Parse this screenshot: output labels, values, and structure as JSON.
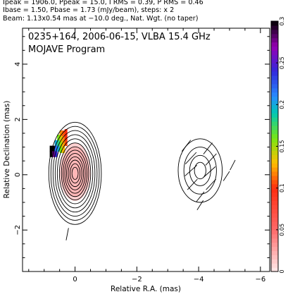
{
  "header": {
    "line1": "Ipeak = 1906.0, Ppeak = 15.0, I RMS = 0.39, P RMS = 0.46",
    "line2": "Ibase = 1.50, Pbase = 1.73 (mJy/beam), steps: x 2",
    "line3": "Beam: 1.13x0.54 mas at −10.0 deg., Nat. Wgt. (no taper)"
  },
  "panel": {
    "line1": "0235+164, 2006-06-15, VLBA 15.4 GHz",
    "line2": "MOJAVE Program"
  },
  "chart_data": {
    "type": "heatmap",
    "xlabel": "Relative R.A. (mas)",
    "ylabel": "Relative Declination (mas)",
    "xlim": [
      1.7,
      -6.3
    ],
    "ylim": [
      -3.5,
      5.3
    ],
    "xticks": [
      {
        "value": 0,
        "label": "0"
      },
      {
        "value": -2,
        "label": "−2"
      },
      {
        "value": -4,
        "label": "−4"
      },
      {
        "value": -6,
        "label": "−6"
      }
    ],
    "yticks": [
      {
        "value": -2,
        "label": "−2"
      },
      {
        "value": 0,
        "label": "0"
      },
      {
        "value": 2,
        "label": "2"
      },
      {
        "value": 4,
        "label": "4"
      }
    ],
    "colorbar": {
      "range": [
        0,
        0.3
      ],
      "ticks": [
        {
          "value": 0,
          "label": "0"
        },
        {
          "value": 0.05,
          "label": "0.05"
        },
        {
          "value": 0.1,
          "label": "0.1"
        },
        {
          "value": 0.15,
          "label": "0.15"
        },
        {
          "value": 0.2,
          "label": "0.2"
        },
        {
          "value": 0.25,
          "label": "0.25"
        },
        {
          "value": 0.3,
          "label": "0.3"
        }
      ]
    },
    "core_contours": {
      "center": [
        0,
        0.05
      ],
      "semi_major": [
        0.22,
        0.35,
        0.48,
        0.6,
        0.72,
        0.84,
        0.96,
        1.1,
        1.25,
        1.4,
        1.55,
        1.7,
        1.85
      ],
      "axis_ratio": 0.46
    },
    "companion_contours": {
      "center": [
        -4.05,
        0.15
      ],
      "semi_major": [
        0.3,
        0.55,
        0.85,
        1.15
      ],
      "axis_ratio": 0.62
    },
    "polarization_core": {
      "center": [
        0,
        0.1
      ],
      "semi_major": [
        0.9,
        1.05
      ],
      "axis_ratio": 0.48,
      "value_range": [
        0.005,
        0.05
      ]
    },
    "polarization_edge": [
      {
        "x": 0.78,
        "y": 0.95,
        "value": 0.3
      },
      {
        "x": 0.7,
        "y": 0.95,
        "value": 0.3
      },
      {
        "x": 0.78,
        "y": 0.75,
        "value": 0.3
      },
      {
        "x": 0.7,
        "y": 0.75,
        "value": 0.28
      },
      {
        "x": 0.62,
        "y": 1.15,
        "value": 0.2
      },
      {
        "x": 0.62,
        "y": 0.95,
        "value": 0.22
      },
      {
        "x": 0.62,
        "y": 0.75,
        "value": 0.24
      },
      {
        "x": 0.54,
        "y": 1.35,
        "value": 0.16
      },
      {
        "x": 0.54,
        "y": 1.15,
        "value": 0.18
      },
      {
        "x": 0.54,
        "y": 0.95,
        "value": 0.2
      },
      {
        "x": 0.46,
        "y": 1.5,
        "value": 0.12
      },
      {
        "x": 0.46,
        "y": 1.3,
        "value": 0.14
      },
      {
        "x": 0.46,
        "y": 1.1,
        "value": 0.15
      },
      {
        "x": 0.46,
        "y": 0.9,
        "value": 0.16
      },
      {
        "x": 0.38,
        "y": 1.5,
        "value": 0.11
      },
      {
        "x": 0.38,
        "y": 1.3,
        "value": 0.12
      },
      {
        "x": 0.38,
        "y": 1.1,
        "value": 0.125
      },
      {
        "x": 0.38,
        "y": 0.9,
        "value": 0.13
      },
      {
        "x": 0.3,
        "y": 1.55,
        "value": 0.1
      },
      {
        "x": 0.3,
        "y": 1.35,
        "value": 0.1
      },
      {
        "x": 0.3,
        "y": 1.15,
        "value": 0.105
      }
    ],
    "polarization_vectors": [
      {
        "x": -3.6,
        "y": 1.05,
        "angle": 35,
        "length": 0.5
      },
      {
        "x": -4.3,
        "y": 0.95,
        "angle": 35,
        "length": 0.5
      },
      {
        "x": -3.75,
        "y": 0.6,
        "angle": 40,
        "length": 0.55
      },
      {
        "x": -4.4,
        "y": 0.55,
        "angle": 40,
        "length": 0.55
      },
      {
        "x": -3.75,
        "y": 0.15,
        "angle": 45,
        "length": 0.55
      },
      {
        "x": -4.35,
        "y": 0.1,
        "angle": 45,
        "length": 0.55
      },
      {
        "x": -3.8,
        "y": -0.35,
        "angle": 40,
        "length": 0.5
      },
      {
        "x": -4.4,
        "y": -0.35,
        "angle": 40,
        "length": 0.5
      },
      {
        "x": -4.05,
        "y": -0.8,
        "angle": 35,
        "length": 0.45
      },
      {
        "x": -4.05,
        "y": -1.1,
        "angle": 30,
        "length": 0.4
      },
      {
        "x": -4.9,
        "y": -0.05,
        "angle": 30,
        "length": 0.4
      },
      {
        "x": -5.1,
        "y": 0.35,
        "angle": 25,
        "length": 0.4
      },
      {
        "x": 0.25,
        "y": -2.15,
        "angle": 10,
        "length": 0.45
      }
    ]
  }
}
